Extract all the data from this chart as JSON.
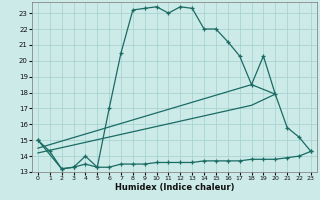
{
  "title": "",
  "xlabel": "Humidex (Indice chaleur)",
  "background_color": "#cceae8",
  "grid_color": "#aad4d2",
  "line_color": "#1a6b64",
  "xlim": [
    -0.5,
    23.5
  ],
  "ylim": [
    13.0,
    23.7
  ],
  "yticks": [
    13,
    14,
    15,
    16,
    17,
    18,
    19,
    20,
    21,
    22,
    23
  ],
  "xticks": [
    0,
    1,
    2,
    3,
    4,
    5,
    6,
    7,
    8,
    9,
    10,
    11,
    12,
    13,
    14,
    15,
    16,
    17,
    18,
    19,
    20,
    21,
    22,
    23
  ],
  "series1_x": [
    0,
    1,
    2,
    3,
    4,
    5,
    6,
    7,
    8,
    9,
    10,
    11,
    12,
    13,
    14,
    15,
    16,
    17,
    18,
    19,
    20,
    21,
    22,
    23
  ],
  "series1_y": [
    15.0,
    14.3,
    13.2,
    13.3,
    13.5,
    13.3,
    17.0,
    20.5,
    23.2,
    23.3,
    23.4,
    23.0,
    23.4,
    23.3,
    22.0,
    22.0,
    21.2,
    20.3,
    18.5,
    20.3,
    17.9,
    15.8,
    15.2,
    14.3
  ],
  "series2_x": [
    0,
    2,
    3,
    4,
    5,
    6,
    7,
    8,
    9,
    10,
    11,
    12,
    13,
    14,
    15,
    16,
    17,
    18,
    19,
    20,
    21,
    22,
    23
  ],
  "series2_y": [
    15.0,
    13.2,
    13.3,
    14.0,
    13.3,
    13.3,
    13.5,
    13.5,
    13.5,
    13.6,
    13.6,
    13.6,
    13.6,
    13.7,
    13.7,
    13.7,
    13.7,
    13.8,
    13.8,
    13.8,
    13.9,
    14.0,
    14.3
  ],
  "series3_x": [
    0,
    18,
    20
  ],
  "series3_y": [
    14.5,
    18.5,
    17.9
  ],
  "series4_x": [
    0,
    18,
    20
  ],
  "series4_y": [
    14.2,
    17.2,
    17.9
  ]
}
